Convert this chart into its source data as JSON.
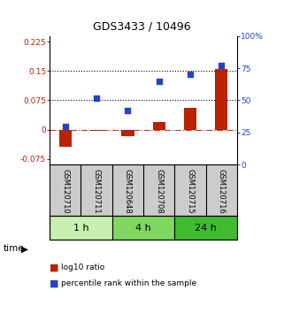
{
  "title": "GDS3433 / 10496",
  "samples": [
    "GSM120710",
    "GSM120711",
    "GSM120648",
    "GSM120708",
    "GSM120715",
    "GSM120716"
  ],
  "log10_ratio": [
    -0.045,
    -0.003,
    -0.018,
    0.02,
    0.055,
    0.155
  ],
  "percentile_rank": [
    0.3,
    0.52,
    0.42,
    0.65,
    0.7,
    0.77
  ],
  "time_groups": [
    {
      "label": "1 h",
      "start": 0,
      "end": 2,
      "color": "#c8f0b0"
    },
    {
      "label": "4 h",
      "start": 2,
      "end": 4,
      "color": "#80d860"
    },
    {
      "label": "24 h",
      "start": 4,
      "end": 6,
      "color": "#40bb30"
    }
  ],
  "ylim_left": [
    -0.09,
    0.24
  ],
  "ylim_right": [
    0,
    1.0
  ],
  "yticks_left": [
    -0.075,
    0,
    0.075,
    0.15,
    0.225
  ],
  "ytick_labels_left": [
    "-0.075",
    "0",
    "0.075",
    "0.15",
    "0.225"
  ],
  "yticks_right": [
    0,
    0.25,
    0.5,
    0.75,
    1.0
  ],
  "ytick_labels_right": [
    "0",
    "25",
    "50",
    "75",
    "100%"
  ],
  "hlines": [
    0.075,
    0.15
  ],
  "bar_color": "#bb2200",
  "dot_color": "#2244cc",
  "zero_line_color": "#cc3333",
  "grid_line_color": "black",
  "bg_color": "white",
  "plot_bg_color": "white",
  "label_log10": "log10 ratio",
  "label_pct": "percentile rank within the sample",
  "time_label": "time",
  "sample_box_color": "#cccccc"
}
